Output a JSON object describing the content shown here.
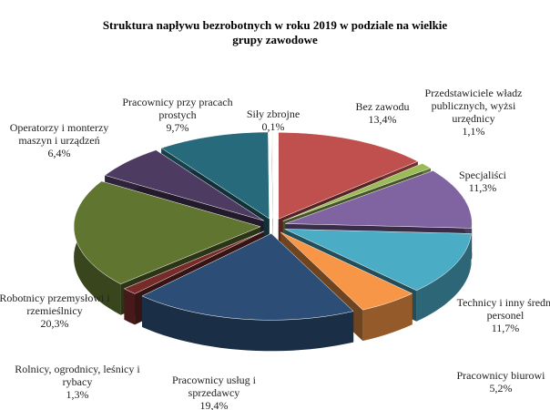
{
  "chart_data": {
    "type": "pie",
    "title": "Struktura napływu bezrobotnych  w roku 2019 w podziale na wielkie grupy zawodowe",
    "categories": [
      "Bez zawodu",
      "Przedstawiciele władz publicznych, wyżsi urzędnicy",
      "Specjaliści",
      "Technicy i inny średni personel",
      "Pracownicy biurowi",
      "Pracownicy usług i sprzedawcy",
      "Rolnicy, ogrodnicy, leśnicy i rybacy",
      "Robotnicy przemysłowi i rzemieślnicy",
      "Operatorzy i monterzy maszyn i urządzeń",
      "Pracownicy przy pracach prostych",
      "Siły zbrojne"
    ],
    "values": [
      13.4,
      1.1,
      11.3,
      11.7,
      5.2,
      19.4,
      1.3,
      20.3,
      6.4,
      9.7,
      0.1
    ],
    "value_labels": [
      "13,4%",
      "1,1%",
      "11,3%",
      "11,7%",
      "5,2%",
      "19,4%",
      "1,3%",
      "20,3%",
      "6,4%",
      "9,7%",
      "0,1%"
    ],
    "colors": [
      "#c0504d",
      "#9bbb59",
      "#8064a2",
      "#4bacc6",
      "#f79646",
      "#2c4d75",
      "#772c2a",
      "#5f7530",
      "#4d3b62",
      "#276a7c",
      "#f2f2f2"
    ]
  }
}
